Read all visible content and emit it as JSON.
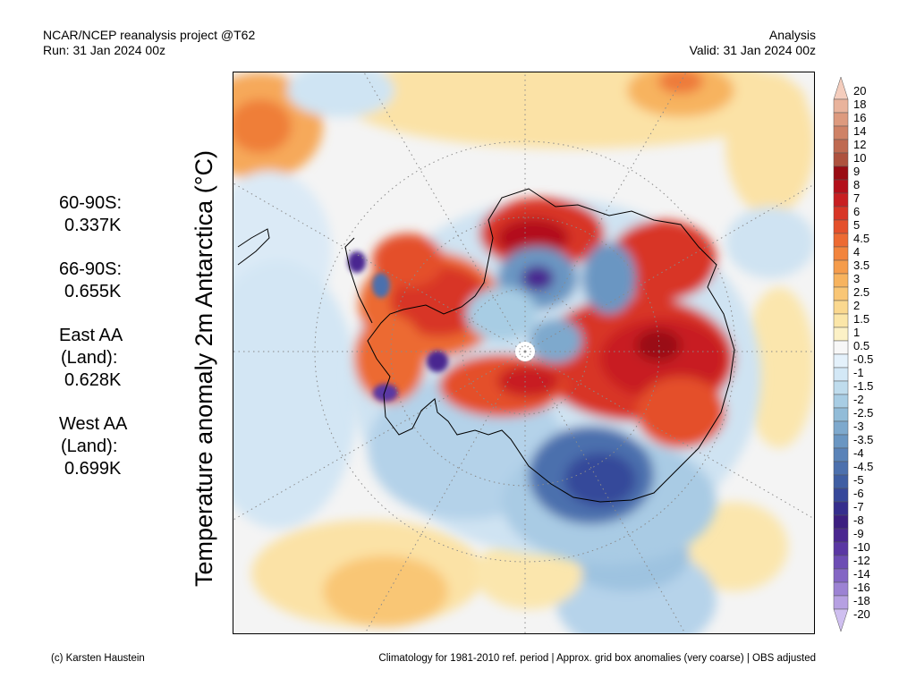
{
  "header": {
    "left_line1": "NCAR/NCEP reanalysis project @T62",
    "left_line2": "Run: 31 Jan 2024 00z",
    "right_line1": "Analysis",
    "right_line2": "Valid: 31 Jan 2024 00z"
  },
  "map": {
    "title": "Temperature anomaly 2m Antarctica (°C)",
    "projection": "south-polar-stereographic",
    "graticule": "dotted"
  },
  "stats": [
    {
      "lines": [
        "60-90S:"
      ],
      "value": "0.337K"
    },
    {
      "lines": [
        "66-90S:"
      ],
      "value": "0.655K"
    },
    {
      "lines": [
        "East AA",
        "(Land):"
      ],
      "value": "0.628K"
    },
    {
      "lines": [
        "West AA",
        "(Land):"
      ],
      "value": "0.699K"
    }
  ],
  "colorbar": {
    "labels": [
      "20",
      "18",
      "16",
      "14",
      "12",
      "10",
      "9",
      "8",
      "7",
      "6",
      "5",
      "4.5",
      "4",
      "3.5",
      "3",
      "2.5",
      "2",
      "1.5",
      "1",
      "0.5",
      "-0.5",
      "-1",
      "-1.5",
      "-2",
      "-2.5",
      "-3",
      "-3.5",
      "-4",
      "-4.5",
      "-5",
      "-6",
      "-7",
      "-8",
      "-9",
      "-10",
      "-12",
      "-14",
      "-16",
      "-18",
      "-20"
    ],
    "colors": [
      "#f4cdbd",
      "#e9b39c",
      "#dd9a7e",
      "#cf8266",
      "#bf6a51",
      "#ae523e",
      "#9a0c14",
      "#b3101b",
      "#c81f22",
      "#d83526",
      "#e4502b",
      "#ed6a32",
      "#f2843d",
      "#f59c4b",
      "#f7b35e",
      "#f9c675",
      "#fad88f",
      "#fbe6a8",
      "#fcf1c6",
      "#f7f7f7",
      "#e4f1fb",
      "#d3e8f6",
      "#bfdced",
      "#a8cde4",
      "#92bcd8",
      "#7ea9cd",
      "#6a96c2",
      "#5a83b8",
      "#4c70ad",
      "#3f5ea3",
      "#36489a",
      "#352e8d",
      "#3c1f80",
      "#4a2790",
      "#5a37a3",
      "#6d4db4",
      "#8466c4",
      "#9c82d3",
      "#b6a0e2",
      "#cfbff0"
    ]
  },
  "footer": {
    "left": "(c) Karsten Haustein",
    "right": "Climatology for 1981-2010 ref. period | Approx. grid box anomalies (very coarse) | OBS adjusted"
  }
}
